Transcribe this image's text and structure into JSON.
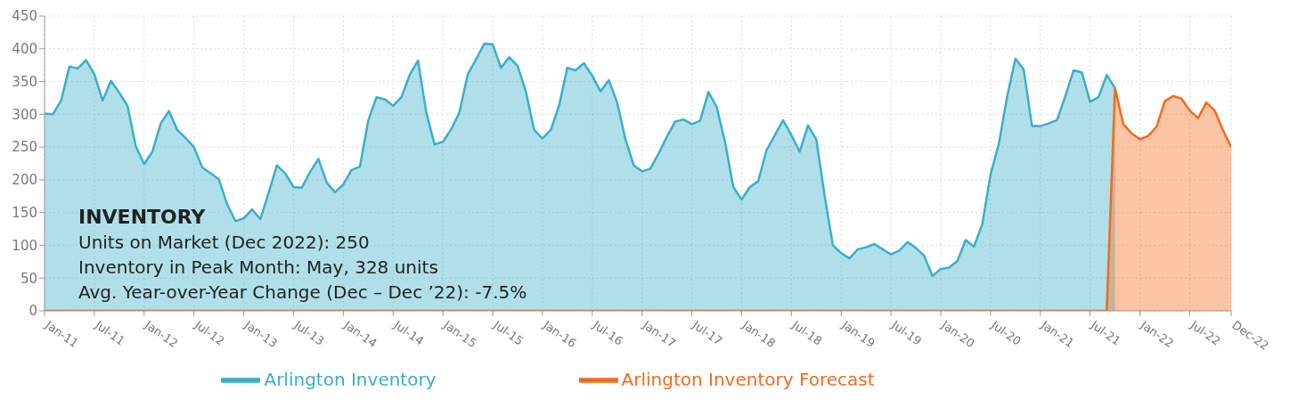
{
  "chart_data": {
    "type": "area",
    "x": [
      "2011-01",
      "2011-02",
      "2011-03",
      "2011-04",
      "2011-05",
      "2011-06",
      "2011-07",
      "2011-08",
      "2011-09",
      "2011-10",
      "2011-11",
      "2011-12",
      "2012-01",
      "2012-02",
      "2012-03",
      "2012-04",
      "2012-05",
      "2012-06",
      "2012-07",
      "2012-08",
      "2012-09",
      "2012-10",
      "2012-11",
      "2012-12",
      "2013-01",
      "2013-02",
      "2013-03",
      "2013-04",
      "2013-05",
      "2013-06",
      "2013-07",
      "2013-08",
      "2013-09",
      "2013-10",
      "2013-11",
      "2013-12",
      "2014-01",
      "2014-02",
      "2014-03",
      "2014-04",
      "2014-05",
      "2014-06",
      "2014-07",
      "2014-08",
      "2014-09",
      "2014-10",
      "2014-11",
      "2014-12",
      "2015-01",
      "2015-02",
      "2015-03",
      "2015-04",
      "2015-05",
      "2015-06",
      "2015-07",
      "2015-08",
      "2015-09",
      "2015-10",
      "2015-11",
      "2015-12",
      "2016-01",
      "2016-02",
      "2016-03",
      "2016-04",
      "2016-05",
      "2016-06",
      "2016-07",
      "2016-08",
      "2016-09",
      "2016-10",
      "2016-11",
      "2016-12",
      "2017-01",
      "2017-02",
      "2017-03",
      "2017-04",
      "2017-05",
      "2017-06",
      "2017-07",
      "2017-08",
      "2017-09",
      "2017-10",
      "2017-11",
      "2017-12",
      "2018-01",
      "2018-02",
      "2018-03",
      "2018-04",
      "2018-05",
      "2018-06",
      "2018-07",
      "2018-08",
      "2018-09",
      "2018-10",
      "2018-11",
      "2018-12",
      "2019-01",
      "2019-02",
      "2019-03",
      "2019-04",
      "2019-05",
      "2019-06",
      "2019-07",
      "2019-08",
      "2019-09",
      "2019-10",
      "2019-11",
      "2019-12",
      "2020-01",
      "2020-02",
      "2020-03",
      "2020-04",
      "2020-05",
      "2020-06",
      "2020-07",
      "2020-08",
      "2020-09",
      "2020-10",
      "2020-11",
      "2020-12",
      "2021-01",
      "2021-02",
      "2021-03",
      "2021-04",
      "2021-05",
      "2021-06",
      "2021-07",
      "2021-08",
      "2021-09",
      "2021-10",
      "2021-11",
      "2021-12",
      "2022-01",
      "2022-02",
      "2022-03",
      "2022-04",
      "2022-05",
      "2022-06",
      "2022-07",
      "2022-08",
      "2022-09",
      "2022-10",
      "2022-11",
      "2022-12"
    ],
    "series": [
      {
        "name": "Arlington Inventory",
        "color": "#3aafc9",
        "values": [
          301,
          300,
          321,
          373,
          370,
          383,
          361,
          321,
          351,
          333,
          313,
          251,
          224,
          243,
          286,
          305,
          276,
          264,
          250,
          219,
          210,
          201,
          163,
          137,
          141,
          155,
          140,
          180,
          222,
          210,
          189,
          188,
          212,
          232,
          196,
          181,
          193,
          215,
          220,
          290,
          326,
          323,
          313,
          326,
          360,
          382,
          303,
          254,
          258,
          277,
          303,
          361,
          384,
          408,
          407,
          371,
          387,
          374,
          335,
          276,
          263,
          276,
          313,
          371,
          367,
          378,
          359,
          335,
          352,
          318,
          262,
          222,
          213,
          217,
          240,
          266,
          289,
          292,
          285,
          290,
          334,
          311,
          258,
          189,
          170,
          189,
          198,
          245,
          268,
          291,
          268,
          243,
          283,
          262,
          176,
          100,
          88,
          80,
          94,
          97,
          102,
          94,
          86,
          92,
          105,
          96,
          84,
          53,
          64,
          66,
          76,
          108,
          98,
          132,
          208,
          255,
          327,
          385,
          368,
          282,
          282,
          286,
          291,
          327,
          367,
          364,
          319,
          326,
          360,
          340,
          null,
          null,
          null,
          null,
          null,
          null,
          null,
          null,
          null,
          null,
          null,
          null,
          null,
          null
        ]
      },
      {
        "name": "Arlington Inventory Forecast",
        "color": "#f26b1d",
        "values": [
          0,
          0,
          0,
          0,
          0,
          0,
          0,
          0,
          0,
          0,
          0,
          0,
          0,
          0,
          0,
          0,
          0,
          0,
          0,
          0,
          0,
          0,
          0,
          0,
          0,
          0,
          0,
          0,
          0,
          0,
          0,
          0,
          0,
          0,
          0,
          0,
          0,
          0,
          0,
          0,
          0,
          0,
          0,
          0,
          0,
          0,
          0,
          0,
          0,
          0,
          0,
          0,
          0,
          0,
          0,
          0,
          0,
          0,
          0,
          0,
          0,
          0,
          0,
          0,
          0,
          0,
          0,
          0,
          0,
          0,
          0,
          0,
          0,
          0,
          0,
          0,
          0,
          0,
          0,
          0,
          0,
          0,
          0,
          0,
          0,
          0,
          0,
          0,
          0,
          0,
          0,
          0,
          0,
          0,
          0,
          0,
          0,
          0,
          0,
          0,
          0,
          0,
          0,
          0,
          0,
          0,
          0,
          0,
          0,
          0,
          0,
          0,
          0,
          0,
          0,
          0,
          0,
          0,
          0,
          0,
          0,
          0,
          0,
          0,
          0,
          0,
          0,
          0,
          0,
          340,
          285,
          271,
          262,
          267,
          281,
          320,
          328,
          324,
          306,
          294,
          318,
          306,
          276,
          250
        ]
      }
    ],
    "xlim": [
      "2011-01",
      "2022-12"
    ],
    "xticks": [
      {
        "value": "2011-01",
        "label": "Jan-11"
      },
      {
        "value": "2011-07",
        "label": "Jul-11"
      },
      {
        "value": "2012-01",
        "label": "Jan-12"
      },
      {
        "value": "2012-07",
        "label": "Jul-12"
      },
      {
        "value": "2013-01",
        "label": "Jan-13"
      },
      {
        "value": "2013-07",
        "label": "Jul-13"
      },
      {
        "value": "2014-01",
        "label": "Jan-14"
      },
      {
        "value": "2014-07",
        "label": "Jul-14"
      },
      {
        "value": "2015-01",
        "label": "Jan-15"
      },
      {
        "value": "2015-07",
        "label": "Jul-15"
      },
      {
        "value": "2016-01",
        "label": "Jan-16"
      },
      {
        "value": "2016-07",
        "label": "Jul-16"
      },
      {
        "value": "2017-01",
        "label": "Jan-17"
      },
      {
        "value": "2017-07",
        "label": "Jul-17"
      },
      {
        "value": "2018-01",
        "label": "Jan-18"
      },
      {
        "value": "2018-07",
        "label": "Jul-18"
      },
      {
        "value": "2019-01",
        "label": "Jan-19"
      },
      {
        "value": "2019-07",
        "label": "Jul-19"
      },
      {
        "value": "2020-01",
        "label": "Jan-20"
      },
      {
        "value": "2020-07",
        "label": "Jul-20"
      },
      {
        "value": "2021-01",
        "label": "Jan-21"
      },
      {
        "value": "2021-07",
        "label": "Jul-21"
      },
      {
        "value": "2022-01",
        "label": "Jan-22"
      },
      {
        "value": "2022-07",
        "label": "Jul-22"
      },
      {
        "value": "2022-12",
        "label": "Dec-22"
      }
    ],
    "ylim": [
      0,
      450
    ],
    "yticks": [
      0,
      50,
      100,
      150,
      200,
      250,
      300,
      350,
      400,
      450
    ],
    "grid": true,
    "legend": "bottom",
    "annotations": [
      "INVENTORY",
      "Units on Market (Dec 2022): 250",
      "Inventory in Peak Month: May, 328 units",
      "Avg. Year-over-Year Change (Dec – Dec ’22): -7.5%"
    ]
  }
}
